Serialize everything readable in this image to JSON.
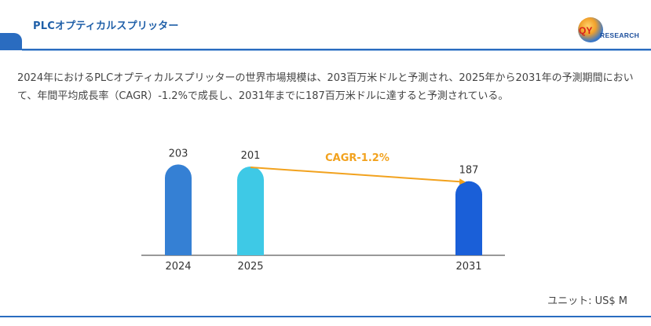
{
  "header": {
    "title": "PLCオプティカルスプリッター",
    "logo_main": "QY",
    "logo_rest": "RESEARCH"
  },
  "description": "2024年におけるPLCオプティカルスプリッターの世界市場規模は、203百万米ドルと予測され、2025年から2031年の予測期間において、年間平均成長率（CAGR）-1.2%で成長し、2031年までに187百万米ドルに達すると予測されている。",
  "unit_label": "ユニット: US$ M",
  "chart_data": {
    "type": "bar",
    "categories": [
      "2024",
      "2025",
      "2031"
    ],
    "values": [
      203,
      201,
      187
    ],
    "bar_colors": [
      "#3580d4",
      "#3ec9e6",
      "#1a5fd8"
    ],
    "annotation": {
      "text": "CAGR-1.2%",
      "from": "2025",
      "to": "2031",
      "color": "#f2a21e"
    },
    "ylim": [
      0,
      210
    ]
  }
}
